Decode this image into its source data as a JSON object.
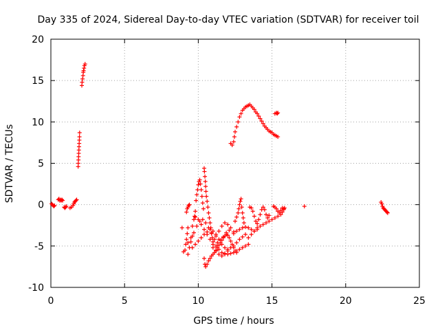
{
  "chart_data": {
    "type": "scatter",
    "title": "Day 335 of 2024, Sidereal Day-to-day VTEC variation (SDTVAR) for receiver toil",
    "xlabel": "GPS time / hours",
    "ylabel": "SDTVAR / TECUs",
    "xlim": [
      0,
      25
    ],
    "ylim": [
      -10,
      20
    ],
    "xticks": [
      "0",
      "5",
      "10",
      "15",
      "20",
      "25"
    ],
    "yticks": [
      "-10",
      "-5",
      "0",
      "5",
      "10",
      "15",
      "20"
    ],
    "grid": true,
    "marker": "+",
    "color": "#ff0000",
    "series": [
      {
        "points": [
          [
            0.05,
            0.1
          ],
          [
            0.1,
            0.0
          ],
          [
            0.15,
            -0.1
          ],
          [
            0.2,
            -0.2
          ],
          [
            0.25,
            -0.1
          ],
          [
            0.5,
            0.6
          ],
          [
            0.55,
            0.7
          ],
          [
            0.6,
            0.5
          ],
          [
            0.65,
            0.6
          ],
          [
            0.7,
            0.5
          ],
          [
            0.75,
            0.6
          ],
          [
            0.8,
            0.5
          ],
          [
            0.9,
            -0.3
          ],
          [
            0.95,
            -0.4
          ],
          [
            1.0,
            -0.3
          ],
          [
            1.05,
            -0.2
          ],
          [
            1.3,
            -0.4
          ],
          [
            1.4,
            -0.3
          ],
          [
            1.5,
            -0.1
          ],
          [
            1.55,
            0.1
          ],
          [
            1.6,
            0.3
          ],
          [
            1.65,
            0.4
          ],
          [
            1.7,
            0.5
          ],
          [
            1.75,
            0.6
          ],
          [
            1.85,
            4.6
          ],
          [
            1.86,
            5.0
          ],
          [
            1.87,
            5.4
          ],
          [
            1.88,
            5.8
          ],
          [
            1.89,
            6.2
          ],
          [
            1.9,
            6.6
          ],
          [
            1.91,
            7.0
          ],
          [
            1.92,
            7.4
          ],
          [
            1.93,
            7.8
          ],
          [
            1.94,
            8.2
          ],
          [
            1.95,
            8.7
          ],
          [
            2.1,
            14.4
          ],
          [
            2.12,
            14.8
          ],
          [
            2.15,
            15.2
          ],
          [
            2.18,
            15.6
          ],
          [
            2.2,
            16.0
          ],
          [
            2.22,
            16.2
          ],
          [
            2.25,
            16.5
          ],
          [
            2.28,
            16.8
          ],
          [
            2.32,
            17.0
          ],
          [
            8.9,
            -2.8
          ],
          [
            9.0,
            -5.7
          ],
          [
            9.1,
            -5.5
          ],
          [
            9.15,
            -4.8
          ],
          [
            9.2,
            -4.2
          ],
          [
            9.25,
            -3.5
          ],
          [
            9.3,
            -2.8
          ],
          [
            9.2,
            -0.9
          ],
          [
            9.25,
            -0.5
          ],
          [
            9.3,
            -0.3
          ],
          [
            9.35,
            -0.1
          ],
          [
            9.4,
            0.0
          ],
          [
            9.3,
            -6.0
          ],
          [
            9.4,
            -5.2
          ],
          [
            9.5,
            -4.5
          ],
          [
            9.6,
            -3.8
          ],
          [
            9.6,
            -2.6
          ],
          [
            9.7,
            -1.8
          ],
          [
            9.75,
            -1.4
          ],
          [
            9.8,
            -0.8
          ],
          [
            9.85,
            0.5
          ],
          [
            9.9,
            1.2
          ],
          [
            9.95,
            1.8
          ],
          [
            10.0,
            2.4
          ],
          [
            10.05,
            2.8
          ],
          [
            10.1,
            3.0
          ],
          [
            10.15,
            2.5
          ],
          [
            10.2,
            1.8
          ],
          [
            10.25,
            1.0
          ],
          [
            10.3,
            0.2
          ],
          [
            10.35,
            -0.5
          ],
          [
            10.4,
            4.4
          ],
          [
            10.42,
            4.0
          ],
          [
            10.45,
            3.4
          ],
          [
            10.48,
            2.8
          ],
          [
            10.5,
            2.2
          ],
          [
            10.52,
            1.6
          ],
          [
            10.55,
            1.0
          ],
          [
            10.6,
            0.4
          ],
          [
            10.65,
            -0.3
          ],
          [
            10.7,
            -1.0
          ],
          [
            10.75,
            -1.6
          ],
          [
            10.8,
            -2.2
          ],
          [
            10.85,
            -2.8
          ],
          [
            10.9,
            -3.4
          ],
          [
            10.95,
            -4.0
          ],
          [
            11.0,
            -4.5
          ],
          [
            9.6,
            -5.2
          ],
          [
            9.8,
            -4.8
          ],
          [
            10.0,
            -4.4
          ],
          [
            10.2,
            -4.0
          ],
          [
            10.4,
            -3.6
          ],
          [
            10.6,
            -3.3
          ],
          [
            10.8,
            -3.0
          ],
          [
            11.0,
            -3.2
          ],
          [
            11.2,
            -3.6
          ],
          [
            11.4,
            -4.2
          ],
          [
            11.6,
            -4.8
          ],
          [
            11.8,
            -5.2
          ],
          [
            12.0,
            -5.4
          ],
          [
            9.8,
            -1.5
          ],
          [
            10.0,
            -1.8
          ],
          [
            10.2,
            -2.4
          ],
          [
            10.4,
            -3.0
          ],
          [
            10.6,
            -3.6
          ],
          [
            10.8,
            -4.2
          ],
          [
            11.0,
            -4.8
          ],
          [
            11.2,
            -5.0
          ],
          [
            11.4,
            -5.4
          ],
          [
            10.4,
            -6.5
          ],
          [
            10.45,
            -7.2
          ],
          [
            10.5,
            -7.5
          ],
          [
            10.6,
            -7.2
          ],
          [
            10.7,
            -6.8
          ],
          [
            10.8,
            -6.5
          ],
          [
            10.9,
            -6.2
          ],
          [
            11.0,
            -6.0
          ],
          [
            11.1,
            -5.8
          ],
          [
            11.2,
            -5.5
          ],
          [
            11.3,
            -5.2
          ],
          [
            11.4,
            -4.9
          ],
          [
            11.5,
            -4.6
          ],
          [
            11.6,
            -4.3
          ],
          [
            11.7,
            -4.0
          ],
          [
            11.8,
            -3.8
          ],
          [
            11.9,
            -3.6
          ],
          [
            12.0,
            -3.7
          ],
          [
            12.1,
            -4.0
          ],
          [
            12.2,
            -4.4
          ],
          [
            12.3,
            -4.8
          ],
          [
            12.4,
            -5.2
          ],
          [
            12.5,
            -5.6
          ],
          [
            12.6,
            -5.8
          ],
          [
            11.6,
            -5.8
          ],
          [
            11.8,
            -5.9
          ],
          [
            12.0,
            -6.0
          ],
          [
            12.2,
            -5.9
          ],
          [
            12.4,
            -5.8
          ],
          [
            12.6,
            -5.6
          ],
          [
            12.8,
            -5.4
          ],
          [
            13.0,
            -5.2
          ],
          [
            13.2,
            -5.0
          ],
          [
            13.4,
            -4.8
          ],
          [
            11.2,
            -3.8
          ],
          [
            11.4,
            -3.2
          ],
          [
            11.6,
            -2.6
          ],
          [
            11.8,
            -2.2
          ],
          [
            12.0,
            -2.4
          ],
          [
            12.2,
            -2.8
          ],
          [
            12.4,
            -3.3
          ],
          [
            12.5,
            -2.0
          ],
          [
            12.6,
            -1.5
          ],
          [
            12.7,
            -1.0
          ],
          [
            12.75,
            -0.5
          ],
          [
            12.8,
            0.0
          ],
          [
            12.85,
            0.4
          ],
          [
            12.9,
            0.7
          ],
          [
            12.95,
            -0.3
          ],
          [
            13.0,
            -1.0
          ],
          [
            13.05,
            -1.6
          ],
          [
            13.1,
            -2.2
          ],
          [
            12.4,
            -3.5
          ],
          [
            12.6,
            -3.2
          ],
          [
            12.8,
            -3.0
          ],
          [
            13.0,
            -2.8
          ],
          [
            13.2,
            -2.7
          ],
          [
            13.4,
            -2.8
          ],
          [
            13.6,
            -3.0
          ],
          [
            13.8,
            -3.2
          ],
          [
            14.0,
            -3.0
          ],
          [
            13.4,
            -4.0
          ],
          [
            13.6,
            -3.6
          ],
          [
            13.8,
            -3.2
          ],
          [
            14.0,
            -2.8
          ],
          [
            14.2,
            -2.6
          ],
          [
            14.4,
            -2.4
          ],
          [
            14.6,
            -2.2
          ],
          [
            14.8,
            -2.0
          ],
          [
            15.0,
            -1.8
          ],
          [
            15.2,
            -1.6
          ],
          [
            15.4,
            -1.4
          ],
          [
            15.6,
            -1.2
          ],
          [
            15.7,
            -0.9
          ],
          [
            15.8,
            -0.6
          ],
          [
            15.85,
            -0.4
          ],
          [
            13.5,
            -0.3
          ],
          [
            13.6,
            -0.4
          ],
          [
            13.7,
            -0.8
          ],
          [
            13.8,
            -1.4
          ],
          [
            13.9,
            -2.0
          ],
          [
            14.0,
            -2.3
          ],
          [
            14.1,
            -1.8
          ],
          [
            14.2,
            -1.2
          ],
          [
            14.3,
            -0.6
          ],
          [
            14.4,
            -0.3
          ],
          [
            14.5,
            -0.6
          ],
          [
            14.6,
            -1.2
          ],
          [
            14.7,
            -1.6
          ],
          [
            14.8,
            -1.3
          ],
          [
            15.1,
            -0.2
          ],
          [
            15.2,
            -0.3
          ],
          [
            15.3,
            -0.5
          ],
          [
            15.4,
            -0.8
          ],
          [
            15.5,
            -1.0
          ],
          [
            15.6,
            -0.7
          ],
          [
            15.7,
            -0.4
          ],
          [
            15.8,
            -0.5
          ],
          [
            12.2,
            7.4
          ],
          [
            12.3,
            7.2
          ],
          [
            12.4,
            7.6
          ],
          [
            12.45,
            8.2
          ],
          [
            12.5,
            8.8
          ],
          [
            12.6,
            9.4
          ],
          [
            12.7,
            10.0
          ],
          [
            12.8,
            10.6
          ],
          [
            12.9,
            11.0
          ],
          [
            13.0,
            11.4
          ],
          [
            13.1,
            11.6
          ],
          [
            13.2,
            11.8
          ],
          [
            13.3,
            11.9
          ],
          [
            13.4,
            12.0
          ],
          [
            13.5,
            12.1
          ],
          [
            13.6,
            11.9
          ],
          [
            13.7,
            11.7
          ],
          [
            13.8,
            11.5
          ],
          [
            13.9,
            11.2
          ],
          [
            14.0,
            11.0
          ],
          [
            14.1,
            10.7
          ],
          [
            14.2,
            10.4
          ],
          [
            14.3,
            10.1
          ],
          [
            14.4,
            9.8
          ],
          [
            14.5,
            9.5
          ],
          [
            14.6,
            9.3
          ],
          [
            14.7,
            9.1
          ],
          [
            14.8,
            8.9
          ],
          [
            14.9,
            8.8
          ],
          [
            15.0,
            8.7
          ],
          [
            15.1,
            8.5
          ],
          [
            15.2,
            8.4
          ],
          [
            15.3,
            8.3
          ],
          [
            15.4,
            8.2
          ],
          [
            15.2,
            11.0
          ],
          [
            15.3,
            11.1
          ],
          [
            15.35,
            11.0
          ],
          [
            15.4,
            11.1
          ],
          [
            17.2,
            -0.2
          ],
          [
            22.4,
            0.3
          ],
          [
            22.45,
            0.1
          ],
          [
            22.5,
            -0.2
          ],
          [
            22.55,
            -0.4
          ],
          [
            22.6,
            -0.5
          ],
          [
            22.65,
            -0.6
          ],
          [
            22.7,
            -0.7
          ],
          [
            22.75,
            -0.8
          ],
          [
            22.8,
            -0.9
          ],
          [
            22.85,
            -1.0
          ],
          [
            9.3,
            -4.6
          ],
          [
            9.5,
            -4.0
          ],
          [
            9.7,
            -3.4
          ],
          [
            9.9,
            -2.6
          ],
          [
            10.1,
            -2.0
          ],
          [
            10.3,
            -1.8
          ],
          [
            10.5,
            -2.2
          ],
          [
            10.7,
            -2.8
          ],
          [
            10.9,
            -3.5
          ],
          [
            11.1,
            -4.2
          ],
          [
            11.3,
            -4.6
          ],
          [
            11.5,
            -4.3
          ],
          [
            11.7,
            -3.9
          ],
          [
            11.9,
            -3.4
          ],
          [
            12.1,
            -3.1
          ],
          [
            11.0,
            -5.2
          ],
          [
            11.2,
            -5.6
          ],
          [
            11.4,
            -6.0
          ],
          [
            11.6,
            -6.2
          ],
          [
            11.8,
            -6.0
          ],
          [
            12.0,
            -5.6
          ],
          [
            12.2,
            -5.2
          ],
          [
            12.4,
            -5.0
          ],
          [
            12.6,
            -4.6
          ],
          [
            12.8,
            -4.2
          ],
          [
            13.0,
            -3.9
          ],
          [
            13.2,
            -3.6
          ]
        ]
      }
    ]
  }
}
